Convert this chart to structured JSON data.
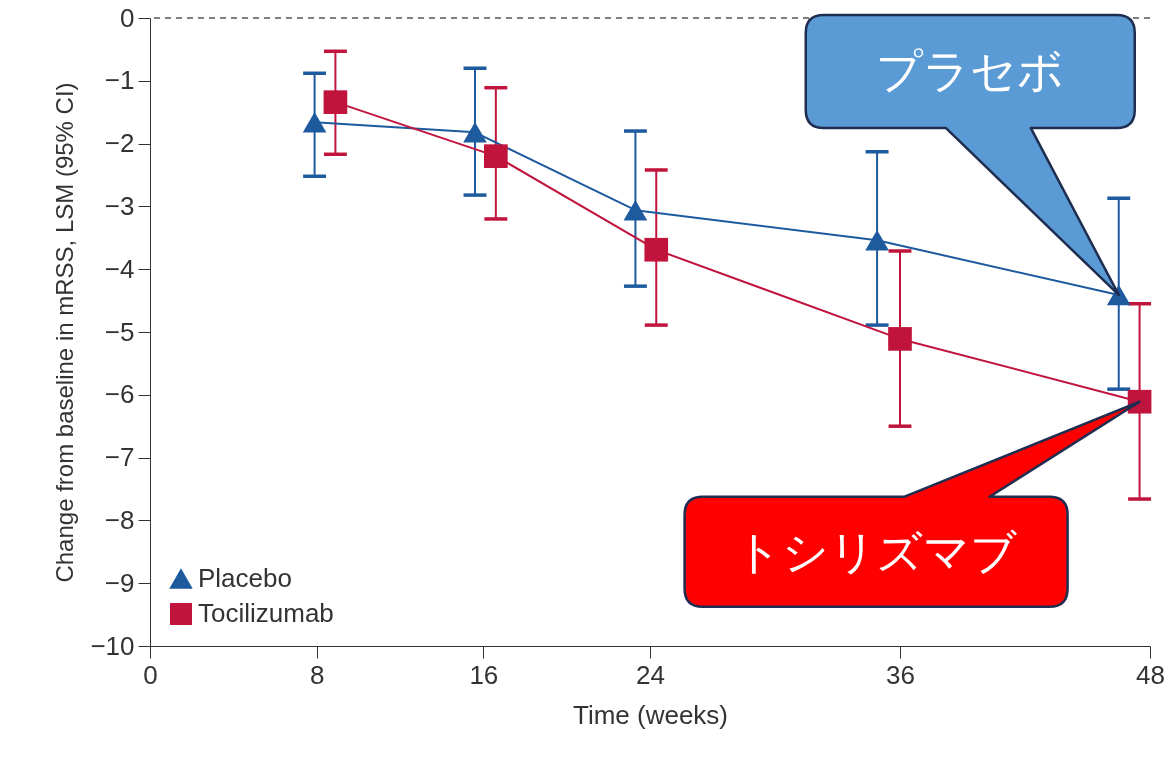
{
  "chart_data": {
    "type": "line",
    "xlabel": "Time (weeks)",
    "ylabel": "Change from baseline in mRSS, LSM (95% CI)",
    "xlim": [
      0,
      48
    ],
    "xticks": [
      0,
      8,
      16,
      24,
      36,
      48
    ],
    "ylim": [
      -10,
      0
    ],
    "yticks": [
      0,
      -1,
      -2,
      -3,
      -4,
      -5,
      -6,
      -7,
      -8,
      -9,
      -10
    ],
    "grid": false,
    "legend": "bottom left",
    "series": [
      {
        "name": "Placebo",
        "color": "#1d5a9e",
        "marker": "triangle",
        "x": [
          7.9,
          15.6,
          23.3,
          34.9,
          46.5
        ],
        "values": [
          -1.66,
          -1.82,
          -3.06,
          -3.54,
          -4.41
        ],
        "errors": [
          [
            -2.52,
            -0.88
          ],
          [
            -2.82,
            -0.8
          ],
          [
            -4.27,
            -1.8
          ],
          [
            -4.89,
            -2.13
          ],
          [
            -5.91,
            -2.87
          ]
        ]
      },
      {
        "name": "Tocilizumab",
        "color": "#c0143c",
        "marker": "square",
        "x": [
          8.9,
          16.6,
          24.3,
          36.0,
          47.5
        ],
        "values": [
          -1.34,
          -2.2,
          -3.69,
          -5.11,
          -6.11
        ],
        "errors": [
          [
            -2.17,
            -0.53
          ],
          [
            -3.2,
            -1.11
          ],
          [
            -4.89,
            -2.42
          ],
          [
            -6.5,
            -3.71
          ],
          [
            -7.66,
            -4.55
          ]
        ]
      }
    ],
    "ref_lines": [
      {
        "axis": "y",
        "value": 0,
        "color": "#555555",
        "line_style": "dashed"
      }
    ],
    "annotations": [
      "プラセボ",
      "トシリズマブ"
    ]
  }
}
